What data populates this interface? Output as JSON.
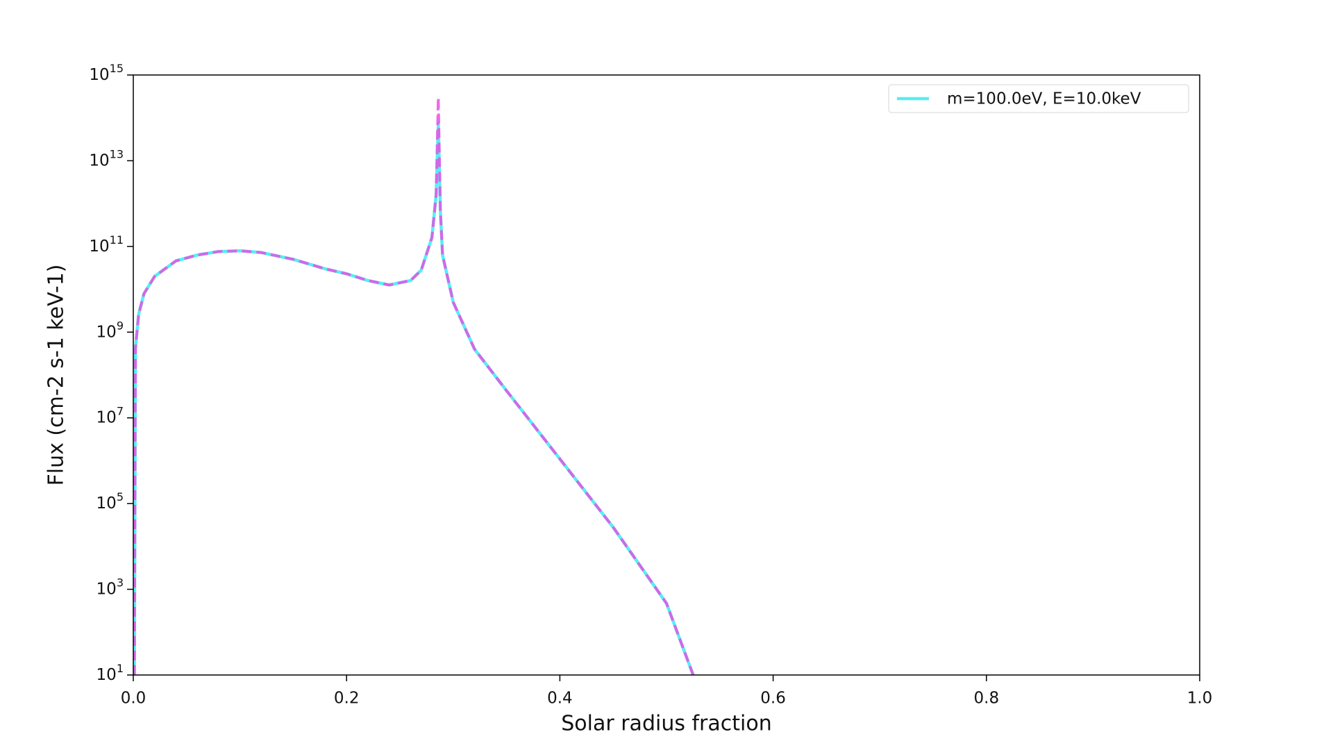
{
  "chart_data": {
    "type": "line",
    "xlabel": "Solar radius fraction",
    "ylabel": "Flux (cm-2 s-1 keV-1)",
    "x": [
      0.001,
      0.002,
      0.005,
      0.01,
      0.02,
      0.04,
      0.06,
      0.08,
      0.1,
      0.12,
      0.15,
      0.18,
      0.2,
      0.22,
      0.24,
      0.26,
      0.27,
      0.28,
      0.284,
      0.286,
      0.288,
      0.29,
      0.3,
      0.32,
      0.35,
      0.4,
      0.45,
      0.5,
      0.525
    ],
    "series": [
      {
        "name": "m=100.0eV, E=10.0keV",
        "color": "#55efef",
        "style": "solid",
        "values": [
          10,
          420000000.0,
          2600000000.0,
          7900000000.0,
          20000000000.0,
          46000000000.0,
          63000000000.0,
          76000000000.0,
          79000000000.0,
          72000000000.0,
          50000000000.0,
          30000000000.0,
          23000000000.0,
          16000000000.0,
          12600000000.0,
          16000000000.0,
          28000000000.0,
          160000000000.0,
          1600000000000.0,
          76000000000000.0,
          630000000000.0,
          63000000000.0,
          5000000000.0,
          400000000.0,
          43000000.0,
          1100000.0,
          28000.0,
          470,
          10
        ]
      },
      {
        "color": "#e850e8",
        "style": "dashed",
        "values": [
          10,
          420000000.0,
          2600000000.0,
          7900000000.0,
          20000000000.0,
          46000000000.0,
          63000000000.0,
          76000000000.0,
          79000000000.0,
          72000000000.0,
          50000000000.0,
          30000000000.0,
          23000000000.0,
          16000000000.0,
          12600000000.0,
          16000000000.0,
          28000000000.0,
          160000000000.0,
          1600000000000.0,
          300000000000000.0,
          630000000000.0,
          63000000000.0,
          5000000000.0,
          400000000.0,
          43000000.0,
          1100000.0,
          28000.0,
          470,
          10
        ]
      }
    ],
    "xlim": [
      0,
      1
    ],
    "xticks": [
      {
        "value": 0,
        "label": "0.0"
      },
      0.2,
      0.4,
      0.6,
      0.8,
      {
        "value": 1,
        "label": "1.0"
      }
    ],
    "ylim": [
      10,
      1000000000000000.0
    ],
    "yscale": "log",
    "yticks": [
      {
        "value": 10,
        "label": "10",
        "exponent": "1"
      },
      {
        "value": 1000,
        "label": "10",
        "exponent": "3"
      },
      {
        "value": 100000,
        "label": "10",
        "exponent": "5"
      },
      {
        "value": 10000000,
        "label": "10",
        "exponent": "7"
      },
      {
        "value": 1000000000,
        "label": "10",
        "exponent": "9"
      },
      {
        "value": 100000000000,
        "label": "10",
        "exponent": "11"
      },
      {
        "value": 10000000000000,
        "label": "10",
        "exponent": "13"
      },
      {
        "value": 1000000000000000,
        "label": "10",
        "exponent": "15"
      }
    ],
    "legend": "upper right",
    "grid": false
  }
}
